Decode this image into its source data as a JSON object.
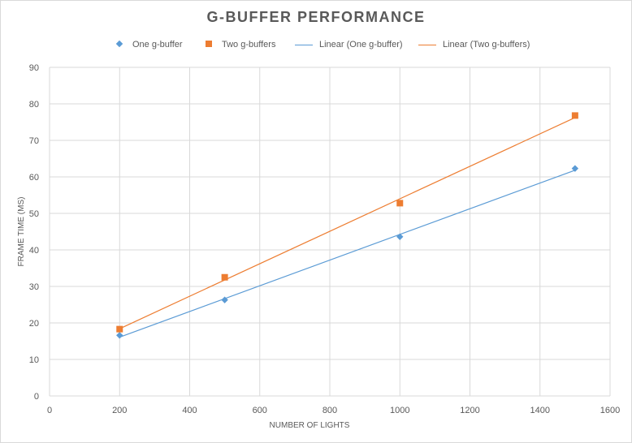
{
  "chart_data": {
    "type": "scatter",
    "title": "G-BUFFER PERFORMANCE",
    "xlabel": "NUMBER OF LIGHTS",
    "ylabel": "FRAME TIME (MS)",
    "xlim": [
      0,
      1600
    ],
    "ylim": [
      0,
      90
    ],
    "x_ticks": [
      0,
      200,
      400,
      600,
      800,
      1000,
      1200,
      1400,
      1600
    ],
    "y_ticks": [
      0,
      10,
      20,
      30,
      40,
      50,
      60,
      70,
      80,
      90
    ],
    "grid": true,
    "legend_position": "top",
    "series": [
      {
        "name": "One g-buffer",
        "marker": "diamond",
        "color": "#5b9bd5",
        "x": [
          200,
          500,
          1000,
          1500
        ],
        "y": [
          16.6,
          26.3,
          43.6,
          62.3
        ]
      },
      {
        "name": "Two g-buffers",
        "marker": "square",
        "color": "#ed7d31",
        "x": [
          200,
          500,
          1000,
          1500
        ],
        "y": [
          18.3,
          32.5,
          52.8,
          76.8
        ]
      }
    ],
    "trendlines": [
      {
        "name": "Linear (One g-buffer)",
        "type": "linear",
        "color": "#5b9bd5",
        "of_series": "One g-buffer"
      },
      {
        "name": "Linear (Two g-buffers)",
        "type": "linear",
        "color": "#ed7d31",
        "of_series": "Two g-buffers"
      }
    ]
  },
  "colors": {
    "gridline": "#d9d9d9",
    "text": "#595959"
  }
}
